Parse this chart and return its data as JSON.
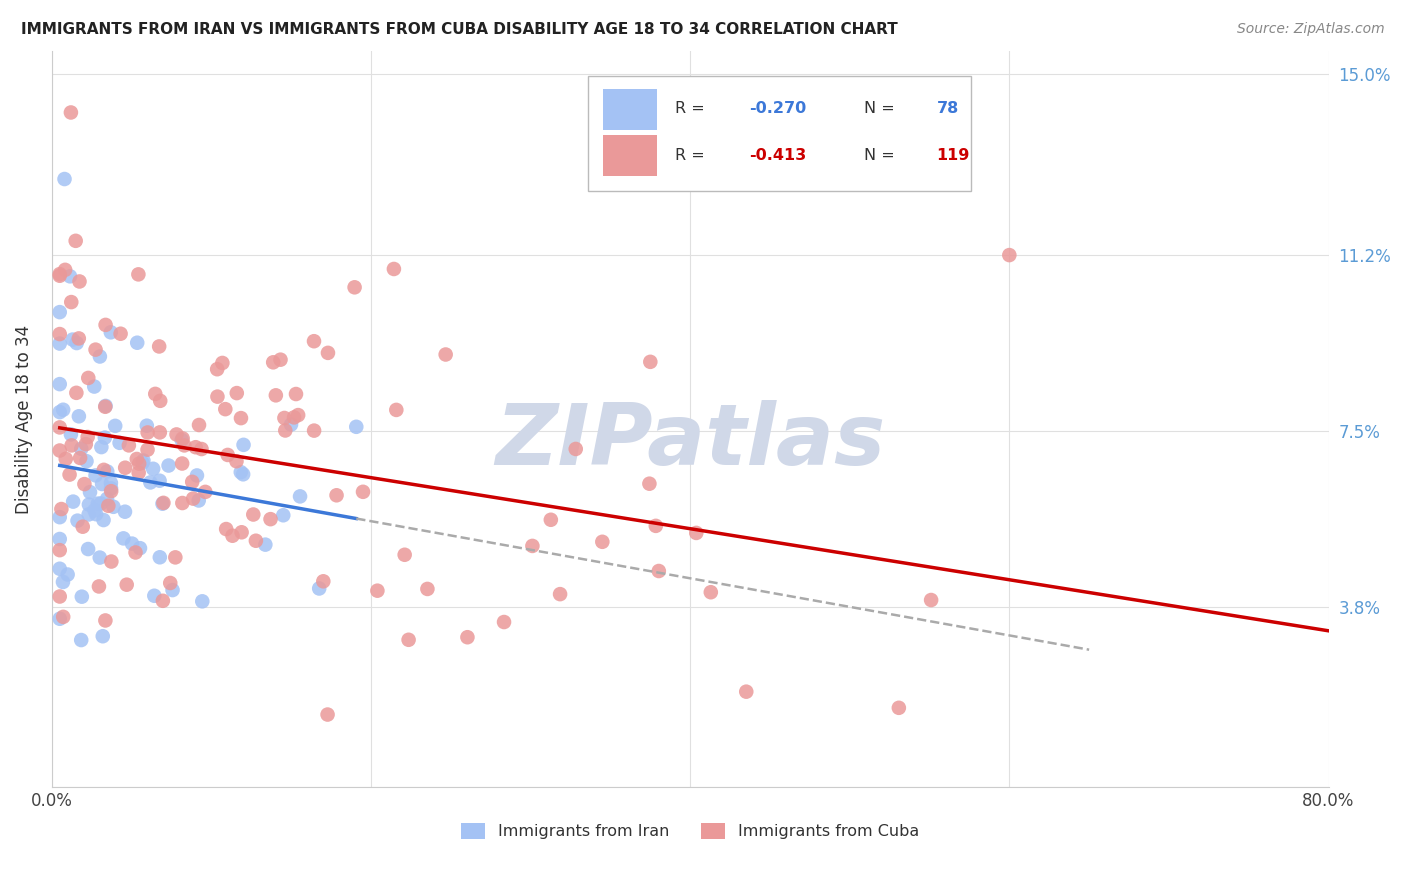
{
  "title": "IMMIGRANTS FROM IRAN VS IMMIGRANTS FROM CUBA DISABILITY AGE 18 TO 34 CORRELATION CHART",
  "source": "Source: ZipAtlas.com",
  "ylabel": "Disability Age 18 to 34",
  "iran_R": -0.27,
  "iran_N": 78,
  "cuba_R": -0.413,
  "cuba_N": 119,
  "iran_color": "#a4c2f4",
  "cuba_color": "#ea9999",
  "iran_line_color": "#3c78d8",
  "cuba_line_color": "#cc0000",
  "dashed_color": "#aaaaaa",
  "watermark_text": "ZIPatlas",
  "watermark_color": "#d0d8e8",
  "background_color": "#ffffff",
  "grid_color": "#e0e0e0",
  "xlim": [
    0.0,
    0.8
  ],
  "ylim": [
    0.0,
    0.155
  ],
  "ytick_vals": [
    0.0,
    0.038,
    0.075,
    0.112,
    0.15
  ],
  "ytick_labels": [
    "",
    "3.8%",
    "7.5%",
    "11.2%",
    "15.0%"
  ],
  "xtick_vals": [
    0.0,
    0.2,
    0.4,
    0.6,
    0.8
  ],
  "xtick_labels": [
    "0.0%",
    "",
    "",
    "",
    "80.0%"
  ]
}
